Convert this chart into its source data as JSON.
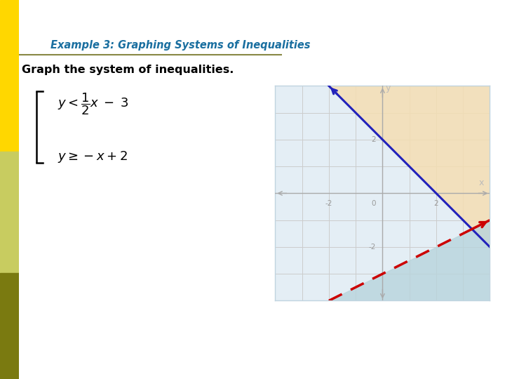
{
  "title": "Example 3: Graphing Systems of Inequalities",
  "subtitle": "Graph the system of inequalities.",
  "xlim": [
    -4,
    4
  ],
  "ylim": [
    -4,
    4
  ],
  "bg_color": "#dce8f2",
  "slide_bg": "#ffffff",
  "title_color": "#1a6fa0",
  "subtitle_color": "#000000",
  "left_bar_yellow": "#ffd700",
  "left_bar_light": "#c8cc60",
  "left_bar_dark": "#7a7a10",
  "shade_tan": "#f5deb3",
  "shade_blue": "#b8d4dc",
  "line_blue_color": "#2222bb",
  "line_red_color": "#cc0000",
  "axis_color": "#aaaaaa",
  "grid_color": "#cccccc",
  "graph_bg": "#e4eef5"
}
